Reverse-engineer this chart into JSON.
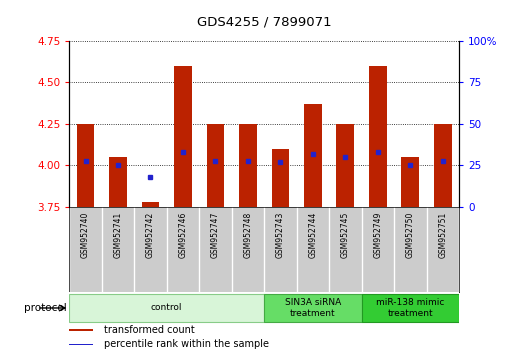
{
  "title": "GDS4255 / 7899071",
  "samples": [
    "GSM952740",
    "GSM952741",
    "GSM952742",
    "GSM952746",
    "GSM952747",
    "GSM952748",
    "GSM952743",
    "GSM952744",
    "GSM952745",
    "GSM952749",
    "GSM952750",
    "GSM952751"
  ],
  "bar_bottoms": [
    3.75,
    3.75,
    3.75,
    3.75,
    3.75,
    3.75,
    3.75,
    3.75,
    3.75,
    3.75,
    3.75,
    3.75
  ],
  "bar_tops": [
    4.25,
    4.05,
    3.78,
    4.6,
    4.25,
    4.25,
    4.1,
    4.37,
    4.25,
    4.6,
    4.05,
    4.25
  ],
  "percentile_values": [
    4.03,
    4.0,
    3.93,
    4.08,
    4.03,
    4.03,
    4.02,
    4.07,
    4.05,
    4.08,
    4.0,
    4.03
  ],
  "ylim_left": [
    3.75,
    4.75
  ],
  "ylim_right": [
    0,
    100
  ],
  "yticks_left": [
    3.75,
    4.0,
    4.25,
    4.5,
    4.75
  ],
  "yticks_right": [
    0,
    25,
    50,
    75,
    100
  ],
  "bar_color": "#bb2200",
  "dot_color": "#2222cc",
  "groups": [
    {
      "label": "control",
      "start": 0,
      "end": 6,
      "color": "#d8f5d8",
      "border": "#88cc88"
    },
    {
      "label": "SIN3A siRNA\ntreatment",
      "start": 6,
      "end": 9,
      "color": "#66dd66",
      "border": "#44aa44"
    },
    {
      "label": "miR-138 mimic\ntreatment",
      "start": 9,
      "end": 12,
      "color": "#33cc33",
      "border": "#229922"
    }
  ],
  "legend_items": [
    {
      "label": "transformed count",
      "color": "#bb2200"
    },
    {
      "label": "percentile rank within the sample",
      "color": "#2222cc"
    }
  ],
  "protocol_label": "protocol",
  "bar_width": 0.55
}
